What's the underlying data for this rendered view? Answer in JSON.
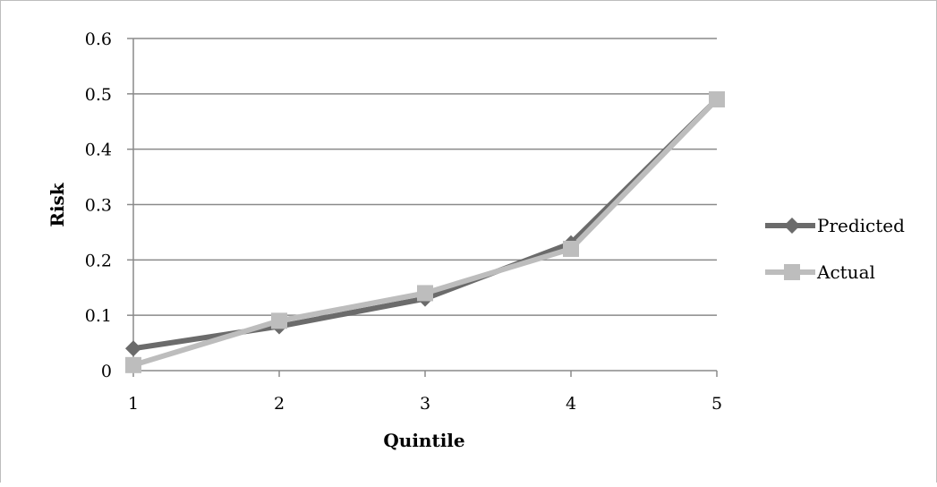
{
  "chart_data": {
    "type": "line",
    "xlabel": "Quintile",
    "ylabel": "Risk",
    "x": [
      1,
      2,
      3,
      4,
      5
    ],
    "ylim": [
      0,
      0.6
    ],
    "yticks": [
      "0",
      "0.1",
      "0.2",
      "0.3",
      "0.4",
      "0.5",
      "0.6"
    ],
    "xticks": [
      "1",
      "2",
      "3",
      "4",
      "5"
    ],
    "grid": true,
    "legend_position": "right",
    "series": [
      {
        "name": "Predicted",
        "values": [
          0.04,
          0.08,
          0.13,
          0.23,
          0.49
        ],
        "color": "#6b6b6b",
        "marker": "diamond"
      },
      {
        "name": "Actual",
        "values": [
          0.01,
          0.09,
          0.14,
          0.22,
          0.49
        ],
        "color": "#bdbdbd",
        "marker": "square"
      }
    ]
  }
}
